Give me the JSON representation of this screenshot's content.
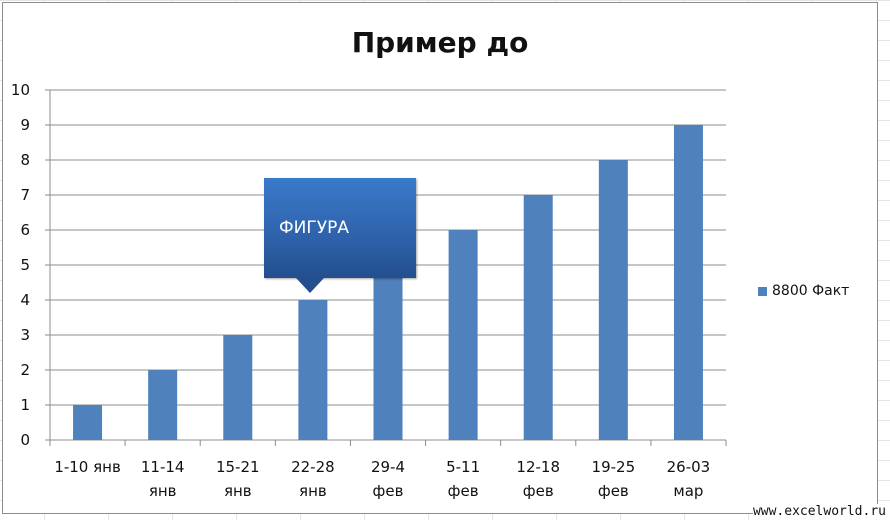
{
  "window": {
    "sheet_bg": "#ffffff"
  },
  "chart_data": {
    "type": "bar",
    "title": "Пример до",
    "categories": [
      [
        "1-10 янв"
      ],
      [
        "11-14",
        "янв"
      ],
      [
        "15-21",
        "янв"
      ],
      [
        "22-28",
        "янв"
      ],
      [
        "29-4",
        "фев"
      ],
      [
        "5-11",
        "фев"
      ],
      [
        "12-18",
        "фев"
      ],
      [
        "19-25",
        "фев"
      ],
      [
        "26-03",
        "мар"
      ]
    ],
    "series": [
      {
        "name": "8800 Факт",
        "values": [
          1,
          2,
          3,
          4,
          5,
          6,
          7,
          8,
          9
        ],
        "color": "#4f81bd"
      }
    ],
    "ylim": [
      0,
      10
    ],
    "yticks": [
      "0",
      "1",
      "2",
      "3",
      "4",
      "5",
      "6",
      "7",
      "8",
      "9",
      "10"
    ],
    "grid": true,
    "legend": "right"
  },
  "legend": {
    "label": "8800 Факт"
  },
  "callout": {
    "text": "ФИГУРА"
  },
  "watermark": {
    "text": "www.excelworld.ru"
  }
}
